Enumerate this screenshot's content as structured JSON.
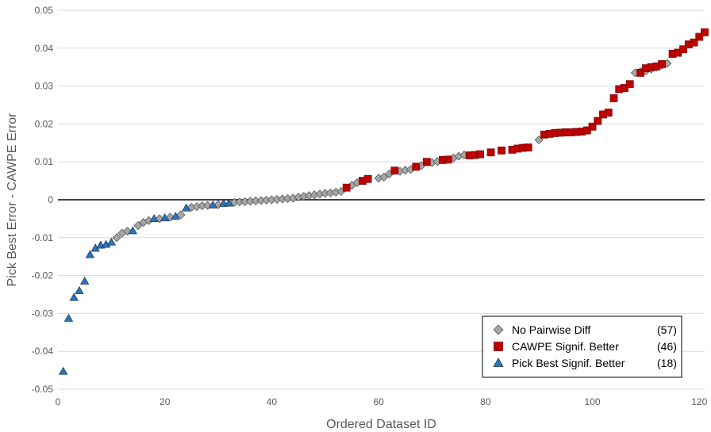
{
  "chart_data": {
    "type": "scatter",
    "title": "",
    "xlabel": "Ordered Dataset ID",
    "ylabel": "Pick Best Error - CAWPE Error",
    "xlim": [
      0,
      121
    ],
    "ylim": [
      -0.05,
      0.05
    ],
    "x_ticks": [
      0,
      20,
      40,
      60,
      80,
      100,
      120
    ],
    "x_tick_labels": [
      "0",
      "20",
      "40",
      "60",
      "80",
      "100",
      "120"
    ],
    "y_ticks": [
      -0.05,
      -0.04,
      -0.03,
      -0.02,
      -0.01,
      0,
      0.01,
      0.02,
      0.03,
      0.04,
      0.05
    ],
    "y_tick_labels": [
      "-0.05",
      "-0.04",
      "-0.03",
      "-0.02",
      "-0.01",
      "0",
      "0.01",
      "0.02",
      "0.03",
      "0.04",
      "0.05"
    ],
    "grid": "horizontal",
    "zero_line": true,
    "legend_position": "bottom-right",
    "series": [
      {
        "name": "No Pairwise Diff",
        "count_label": "(57)",
        "marker": "diamond",
        "color": "#a6a6a6",
        "stroke": "#595959",
        "points": [
          [
            11,
            -0.01
          ],
          [
            12,
            -0.0088
          ],
          [
            13,
            -0.0083
          ],
          [
            15,
            -0.0068
          ],
          [
            16,
            -0.006
          ],
          [
            17,
            -0.0055
          ],
          [
            19,
            -0.005
          ],
          [
            21,
            -0.0046
          ],
          [
            23,
            -0.004
          ],
          [
            25,
            -0.002
          ],
          [
            26,
            -0.0018
          ],
          [
            27,
            -0.0016
          ],
          [
            28,
            -0.0015
          ],
          [
            30,
            -0.0013
          ],
          [
            33,
            -0.0007
          ],
          [
            34,
            -0.0006
          ],
          [
            35,
            -0.0005
          ],
          [
            36,
            -0.0004
          ],
          [
            37,
            -0.0003
          ],
          [
            38,
            -0.0002
          ],
          [
            39,
            -0.0001
          ],
          [
            40,
            0.0
          ],
          [
            41,
            0.0001
          ],
          [
            42,
            0.0002
          ],
          [
            43,
            0.0003
          ],
          [
            44,
            0.0004
          ],
          [
            45,
            0.0007
          ],
          [
            46,
            0.0009
          ],
          [
            47,
            0.0011
          ],
          [
            48,
            0.0013
          ],
          [
            49,
            0.0015
          ],
          [
            50,
            0.0017
          ],
          [
            51,
            0.0018
          ],
          [
            52,
            0.002
          ],
          [
            53,
            0.0022
          ],
          [
            55,
            0.0038
          ],
          [
            56,
            0.0045
          ],
          [
            60,
            0.0057
          ],
          [
            61,
            0.006
          ],
          [
            62,
            0.0068
          ],
          [
            64,
            0.0075
          ],
          [
            65,
            0.0078
          ],
          [
            66,
            0.008
          ],
          [
            68,
            0.009
          ],
          [
            70,
            0.0098
          ],
          [
            71,
            0.0101
          ],
          [
            74,
            0.011
          ],
          [
            75,
            0.0115
          ],
          [
            76,
            0.0118
          ],
          [
            90,
            0.0158
          ],
          [
            108,
            0.0335
          ],
          [
            109,
            0.0338
          ],
          [
            110,
            0.034
          ],
          [
            111,
            0.0345
          ],
          [
            112,
            0.035
          ],
          [
            113,
            0.0355
          ],
          [
            114,
            0.036
          ]
        ]
      },
      {
        "name": "CAWPE Signif. Better",
        "count_label": "(46)",
        "marker": "square",
        "color": "#c00000",
        "stroke": "#7f0000",
        "points": [
          [
            54,
            0.0032
          ],
          [
            57,
            0.005
          ],
          [
            58,
            0.0055
          ],
          [
            63,
            0.0077
          ],
          [
            67,
            0.0087
          ],
          [
            69,
            0.01
          ],
          [
            72,
            0.0105
          ],
          [
            73,
            0.0106
          ],
          [
            77,
            0.0117
          ],
          [
            78,
            0.0118
          ],
          [
            79,
            0.012
          ],
          [
            81,
            0.0125
          ],
          [
            83,
            0.013
          ],
          [
            85,
            0.0132
          ],
          [
            86,
            0.0135
          ],
          [
            87,
            0.0137
          ],
          [
            88,
            0.0138
          ],
          [
            91,
            0.0172
          ],
          [
            92,
            0.0174
          ],
          [
            93,
            0.0176
          ],
          [
            94,
            0.0177
          ],
          [
            95,
            0.0178
          ],
          [
            97,
            0.0179
          ],
          [
            98,
            0.018
          ],
          [
            99,
            0.0183
          ],
          [
            100,
            0.0193
          ],
          [
            101,
            0.0208
          ],
          [
            102,
            0.0225
          ],
          [
            103,
            0.023
          ],
          [
            104,
            0.0268
          ],
          [
            105,
            0.0292
          ],
          [
            106,
            0.0295
          ],
          [
            107,
            0.0305
          ],
          [
            109,
            0.0335
          ],
          [
            110,
            0.0347
          ],
          [
            111,
            0.035
          ],
          [
            112,
            0.0352
          ],
          [
            113,
            0.0358
          ],
          [
            115,
            0.0385
          ],
          [
            116,
            0.0388
          ],
          [
            117,
            0.0397
          ],
          [
            118,
            0.041
          ],
          [
            119,
            0.0415
          ],
          [
            120,
            0.043
          ],
          [
            121,
            0.0442
          ],
          [
            96,
            0.0178
          ]
        ]
      },
      {
        "name": "Pick Best Signif. Better",
        "count_label": "(18)",
        "marker": "triangle",
        "color": "#2e75b6",
        "stroke": "#1f3864",
        "points": [
          [
            1,
            -0.0453
          ],
          [
            2,
            -0.0313
          ],
          [
            3,
            -0.0258
          ],
          [
            4,
            -0.024
          ],
          [
            5,
            -0.0215
          ],
          [
            6,
            -0.0145
          ],
          [
            7,
            -0.0128
          ],
          [
            8,
            -0.012
          ],
          [
            9,
            -0.0118
          ],
          [
            10,
            -0.0112
          ],
          [
            14,
            -0.0082
          ],
          [
            18,
            -0.005
          ],
          [
            20,
            -0.0048
          ],
          [
            22,
            -0.0044
          ],
          [
            24,
            -0.0022
          ],
          [
            29,
            -0.0014
          ],
          [
            31,
            -0.001
          ],
          [
            32,
            -0.0009
          ]
        ]
      }
    ]
  }
}
